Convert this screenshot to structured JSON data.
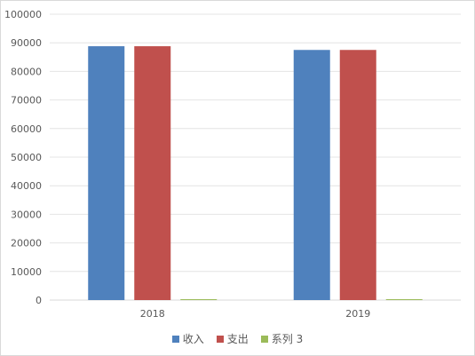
{
  "chart_data": {
    "type": "bar",
    "title": "",
    "xlabel": "",
    "ylabel": "",
    "categories": [
      "2018",
      "2019"
    ],
    "series": [
      {
        "name": "收入",
        "values": [
          88800,
          87500
        ],
        "color": "#4f81bd"
      },
      {
        "name": "支出",
        "values": [
          88800,
          87500
        ],
        "color": "#c0504d"
      },
      {
        "name": "系列 3",
        "values": [
          300,
          300
        ],
        "color": "#9bbb59"
      }
    ],
    "ylim": [
      0,
      100000
    ],
    "yticks": [
      0,
      10000,
      20000,
      30000,
      40000,
      50000,
      60000,
      70000,
      80000,
      90000,
      100000
    ],
    "grid": true,
    "legend_position": "bottom"
  }
}
